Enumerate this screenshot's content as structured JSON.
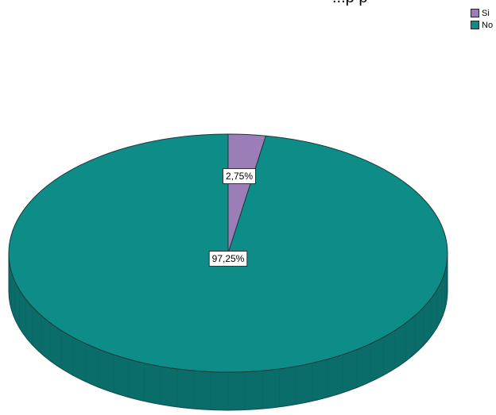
{
  "chart_data": {
    "type": "pie",
    "three_d": true,
    "categories": [
      "Si",
      "No"
    ],
    "values": [
      2.75,
      97.25
    ],
    "data_labels": [
      "2,75%",
      "97,25%"
    ],
    "colors": [
      "#9B7DB8",
      "#0E8C88"
    ],
    "legend_position": "top-right",
    "title": "...p p"
  }
}
